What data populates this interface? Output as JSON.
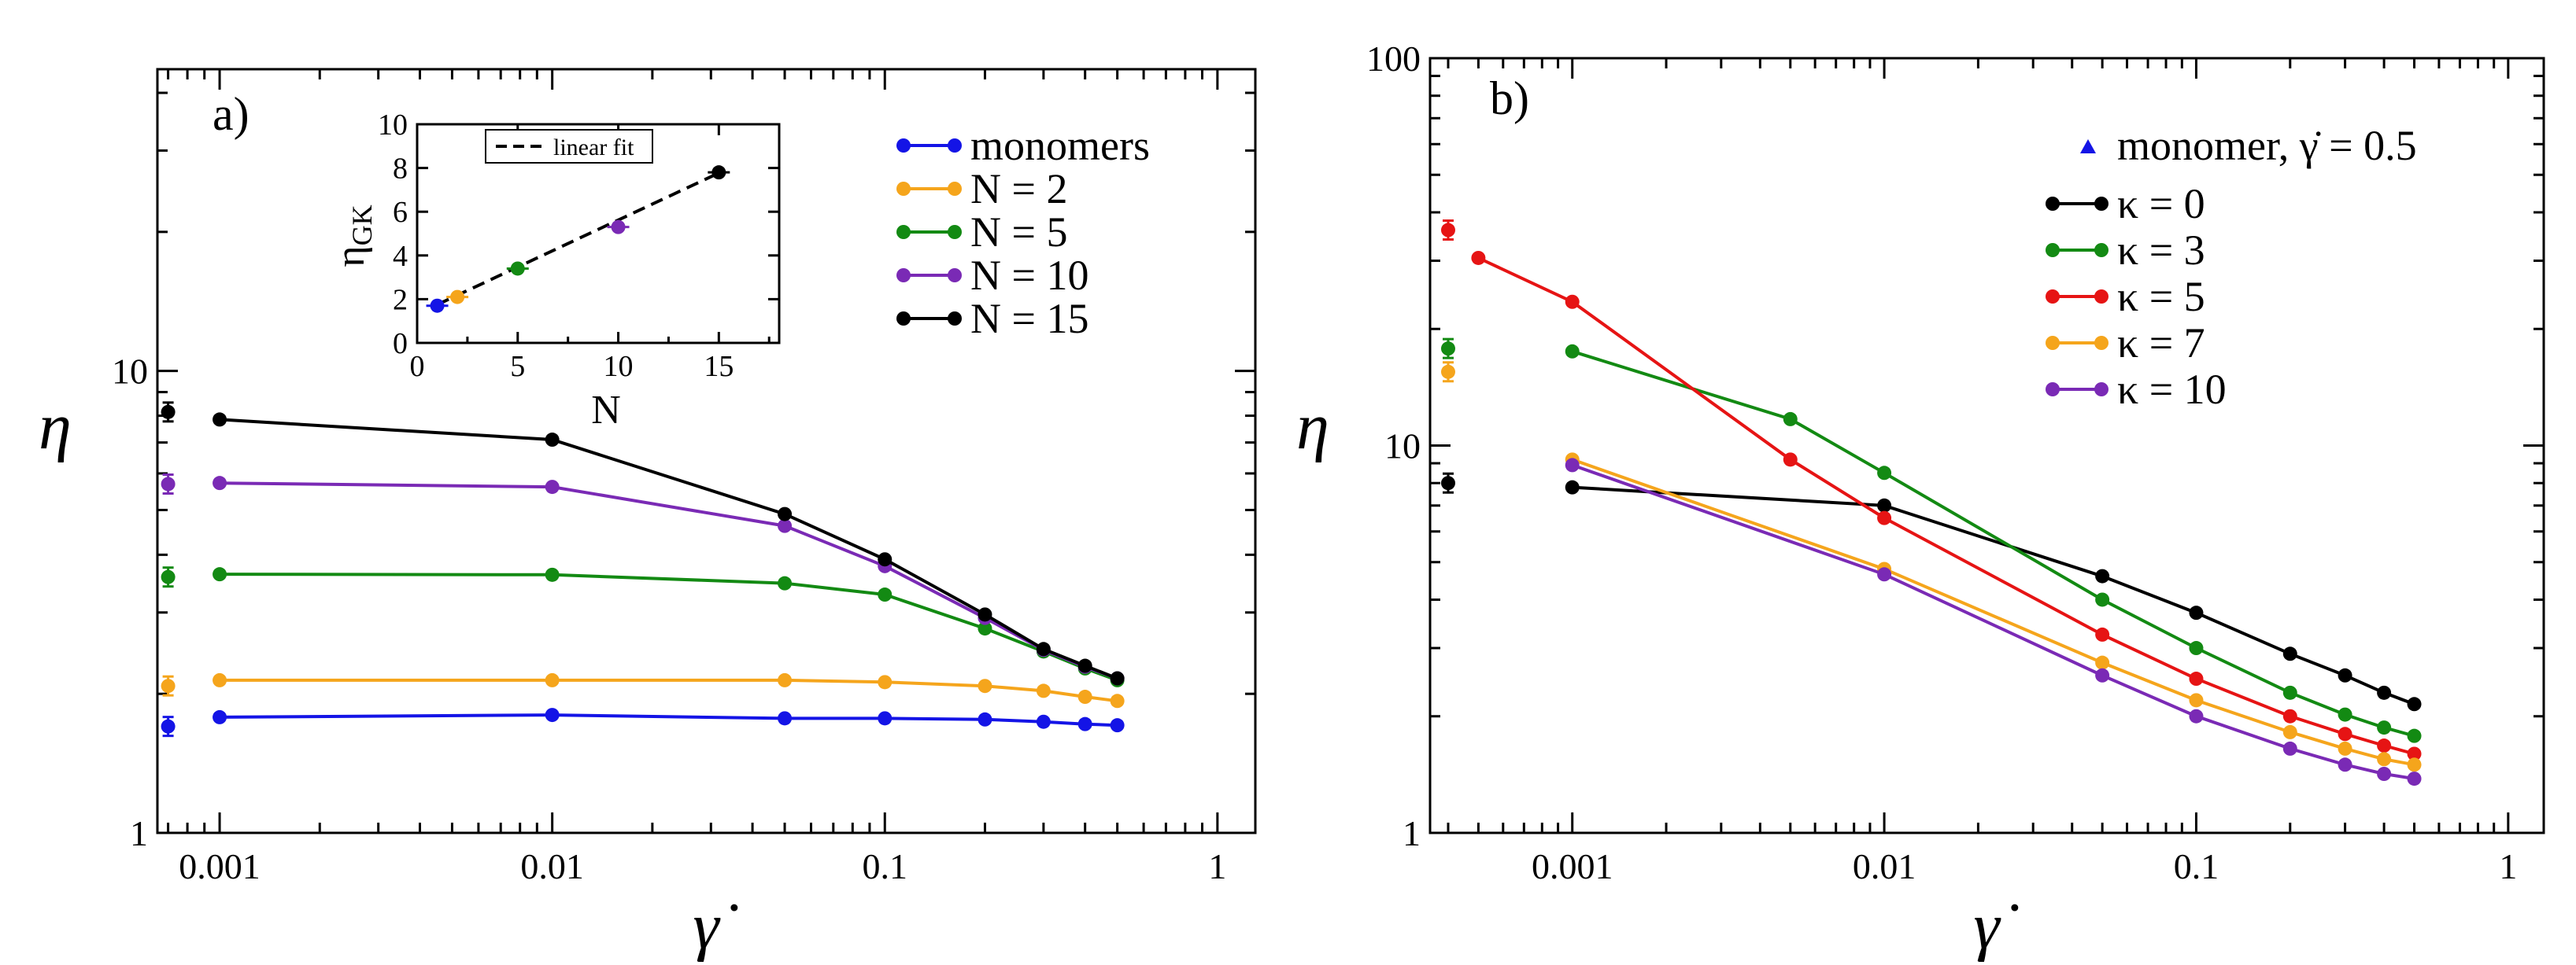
{
  "chart_data": [
    {
      "panel_label": "a)",
      "type": "line",
      "scale": "log-log",
      "xlabel": "γ̇",
      "ylabel": "η",
      "xlim": [
        0.00065,
        1.3
      ],
      "ylim": [
        1,
        45
      ],
      "xticks": [
        {
          "value": 0.001,
          "label": "0.001"
        },
        {
          "value": 0.01,
          "label": "0.01"
        },
        {
          "value": 0.1,
          "label": "0.1"
        },
        {
          "value": 1,
          "label": "1"
        }
      ],
      "yticks": [
        {
          "value": 1,
          "label": "1"
        },
        {
          "value": 10,
          "label": "10"
        }
      ],
      "legend_position": "top-right",
      "series": [
        {
          "name": "monomers",
          "color": "#1414e6",
          "x": [
            0.001,
            0.01,
            0.05,
            0.1,
            0.2,
            0.3,
            0.4,
            0.5
          ],
          "y": [
            1.78,
            1.8,
            1.77,
            1.77,
            1.76,
            1.74,
            1.72,
            1.71
          ],
          "equilibrium": {
            "x": 0.0007,
            "y": 1.7
          }
        },
        {
          "name": "N = 2",
          "color": "#f5a51c",
          "x": [
            0.001,
            0.01,
            0.05,
            0.1,
            0.2,
            0.3,
            0.4,
            0.5
          ],
          "y": [
            2.14,
            2.14,
            2.14,
            2.12,
            2.08,
            2.03,
            1.97,
            1.93
          ],
          "equilibrium": {
            "x": 0.0007,
            "y": 2.08
          }
        },
        {
          "name": "N = 5",
          "color": "#138a13",
          "x": [
            0.001,
            0.01,
            0.05,
            0.1,
            0.2,
            0.3,
            0.4,
            0.5
          ],
          "y": [
            3.63,
            3.62,
            3.47,
            3.28,
            2.77,
            2.47,
            2.27,
            2.14
          ],
          "equilibrium": {
            "x": 0.0007,
            "y": 3.58
          }
        },
        {
          "name": "N = 10",
          "color": "#7a2ab5",
          "x": [
            0.001,
            0.01,
            0.05,
            0.1,
            0.2,
            0.3,
            0.4,
            0.5
          ],
          "y": [
            5.72,
            5.61,
            4.62,
            3.78,
            2.92,
            2.49,
            2.29,
            2.16
          ],
          "equilibrium": {
            "x": 0.0007,
            "y": 5.69
          }
        },
        {
          "name": "N = 15",
          "color": "#000000",
          "x": [
            0.001,
            0.01,
            0.05,
            0.1,
            0.2,
            0.3,
            0.4,
            0.5
          ],
          "y": [
            7.85,
            7.1,
            4.9,
            3.91,
            2.97,
            2.5,
            2.3,
            2.16
          ],
          "equilibrium": {
            "x": 0.0007,
            "y": 8.15
          }
        }
      ],
      "inset": {
        "type": "scatter",
        "xlabel": "N",
        "ylabel": "η",
        "ylabel_sub": "GK",
        "xlim": [
          0,
          18
        ],
        "ylim": [
          0,
          10
        ],
        "xticks": [
          0,
          5,
          10,
          15
        ],
        "yticks": [
          0,
          2,
          4,
          6,
          8,
          10
        ],
        "points": [
          {
            "N": 1,
            "value": 1.7,
            "color": "#1414e6"
          },
          {
            "N": 2,
            "value": 2.1,
            "color": "#f5a51c"
          },
          {
            "N": 5,
            "value": 3.4,
            "color": "#138a13"
          },
          {
            "N": 10,
            "value": 5.3,
            "color": "#7a2ab5"
          },
          {
            "N": 15,
            "value": 7.8,
            "color": "#000000"
          }
        ],
        "fit": {
          "label": "linear fit",
          "intercept": 1.32,
          "slope": 0.43,
          "x_range": [
            1,
            15
          ]
        }
      }
    },
    {
      "panel_label": "b)",
      "type": "line",
      "scale": "log-log",
      "xlabel": "γ̇",
      "ylabel": "η",
      "xlim": [
        0.00035,
        1.3
      ],
      "ylim": [
        1,
        100
      ],
      "xticks": [
        {
          "value": 0.001,
          "label": "0.001"
        },
        {
          "value": 0.01,
          "label": "0.01"
        },
        {
          "value": 0.1,
          "label": "0.1"
        },
        {
          "value": 1,
          "label": "1"
        }
      ],
      "yticks": [
        {
          "value": 1,
          "label": "1"
        },
        {
          "value": 10,
          "label": "10"
        },
        {
          "value": 100,
          "label": "100"
        }
      ],
      "legend_position": "top-right",
      "marker_entry": {
        "name": "monomer, γ̇ = 0.5",
        "color": "#1414e6"
      },
      "series": [
        {
          "name": "κ = 0",
          "color": "#000000",
          "x": [
            0.001,
            0.01,
            0.05,
            0.1,
            0.2,
            0.3,
            0.4,
            0.5
          ],
          "y": [
            7.8,
            7.0,
            4.6,
            3.7,
            2.9,
            2.55,
            2.3,
            2.15
          ],
          "equilibrium": {
            "x": 0.0004,
            "y": 8.0
          }
        },
        {
          "name": "κ = 3",
          "color": "#138a13",
          "x": [
            0.001,
            0.005,
            0.01,
            0.05,
            0.1,
            0.2,
            0.3,
            0.4,
            0.5
          ],
          "y": [
            17.5,
            11.7,
            8.5,
            4.0,
            3.0,
            2.3,
            2.02,
            1.87,
            1.78
          ],
          "equilibrium": {
            "x": 0.0004,
            "y": 17.8
          }
        },
        {
          "name": "κ = 5",
          "color": "#e61414",
          "x": [
            0.0005,
            0.001,
            0.005,
            0.01,
            0.05,
            0.1,
            0.2,
            0.3,
            0.4,
            0.5
          ],
          "y": [
            30.5,
            23.5,
            9.2,
            6.5,
            3.25,
            2.5,
            2.0,
            1.8,
            1.68,
            1.6
          ],
          "equilibrium": {
            "x": 0.0004,
            "y": 36.0
          }
        },
        {
          "name": "κ = 7",
          "color": "#f5a51c",
          "x": [
            0.001,
            0.01,
            0.05,
            0.1,
            0.2,
            0.3,
            0.4,
            0.5
          ],
          "y": [
            9.2,
            4.8,
            2.75,
            2.2,
            1.82,
            1.65,
            1.55,
            1.5
          ],
          "equilibrium": {
            "x": 0.0004,
            "y": 15.5
          }
        },
        {
          "name": "κ = 10",
          "color": "#7a2ab5",
          "x": [
            0.001,
            0.01,
            0.05,
            0.1,
            0.2,
            0.3,
            0.4,
            0.5
          ],
          "y": [
            8.9,
            4.65,
            2.55,
            2.0,
            1.65,
            1.5,
            1.42,
            1.38
          ],
          "equilibrium": null
        }
      ]
    }
  ]
}
